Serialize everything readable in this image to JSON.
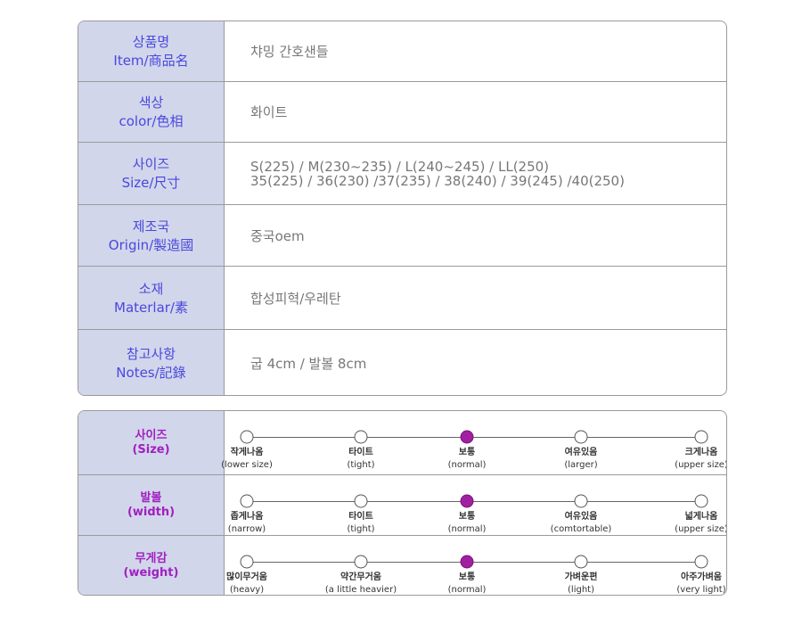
{
  "info_table": {
    "rows": [
      {
        "label": [
          "상품명",
          "Item/商品名"
        ],
        "value": [
          "챠밍 간호샌들"
        ]
      },
      {
        "label": [
          "색상",
          "color/色相"
        ],
        "value": [
          "화이트"
        ]
      },
      {
        "label": [
          "사이즈",
          "Size/尺寸"
        ],
        "value": [
          "S(225) / M(230~235) / L(240~245) / LL(250)",
          "35(225) / 36(230) /37(235) / 38(240) / 39(245) /40(250)"
        ]
      },
      {
        "label": [
          "제조국",
          "Origin/製造國"
        ],
        "value": [
          "중국oem"
        ]
      },
      {
        "label": [
          "소재",
          "Materlar/素"
        ],
        "value": [
          "합성피혁/우레탄"
        ]
      },
      {
        "label": [
          "참고사항",
          "Notes/記錄"
        ],
        "value": [
          "굽 4cm / 발볼 8cm"
        ]
      }
    ]
  },
  "fit_table": {
    "rows": [
      {
        "label": [
          "사이즈",
          "(Size)"
        ],
        "selected": 2,
        "options": [
          [
            "작게나옴",
            "(lower size)"
          ],
          [
            "타이트",
            "(tight)"
          ],
          [
            "보통",
            "(normal)"
          ],
          [
            "여유있음",
            "(larger)"
          ],
          [
            "크게나옴",
            "(upper size)"
          ]
        ]
      },
      {
        "label": [
          "발볼",
          "(width)"
        ],
        "selected": 2,
        "options": [
          [
            "좁게나옴",
            "(narrow)"
          ],
          [
            "타이트",
            "(tight)"
          ],
          [
            "보통",
            "(normal)"
          ],
          [
            "여유있음",
            "(comtortable)"
          ],
          [
            "넓게나옴",
            "(upper size)"
          ]
        ]
      },
      {
        "label": [
          "무게감",
          "(weight)"
        ],
        "selected": 2,
        "options": [
          [
            "많이무거움",
            "(heavy)"
          ],
          [
            "약간무거움",
            "(a little heavier)"
          ],
          [
            "보통",
            "(normal)"
          ],
          [
            "가벼운편",
            "(light)"
          ],
          [
            "아주가벼움",
            "(very light)"
          ]
        ]
      }
    ]
  }
}
